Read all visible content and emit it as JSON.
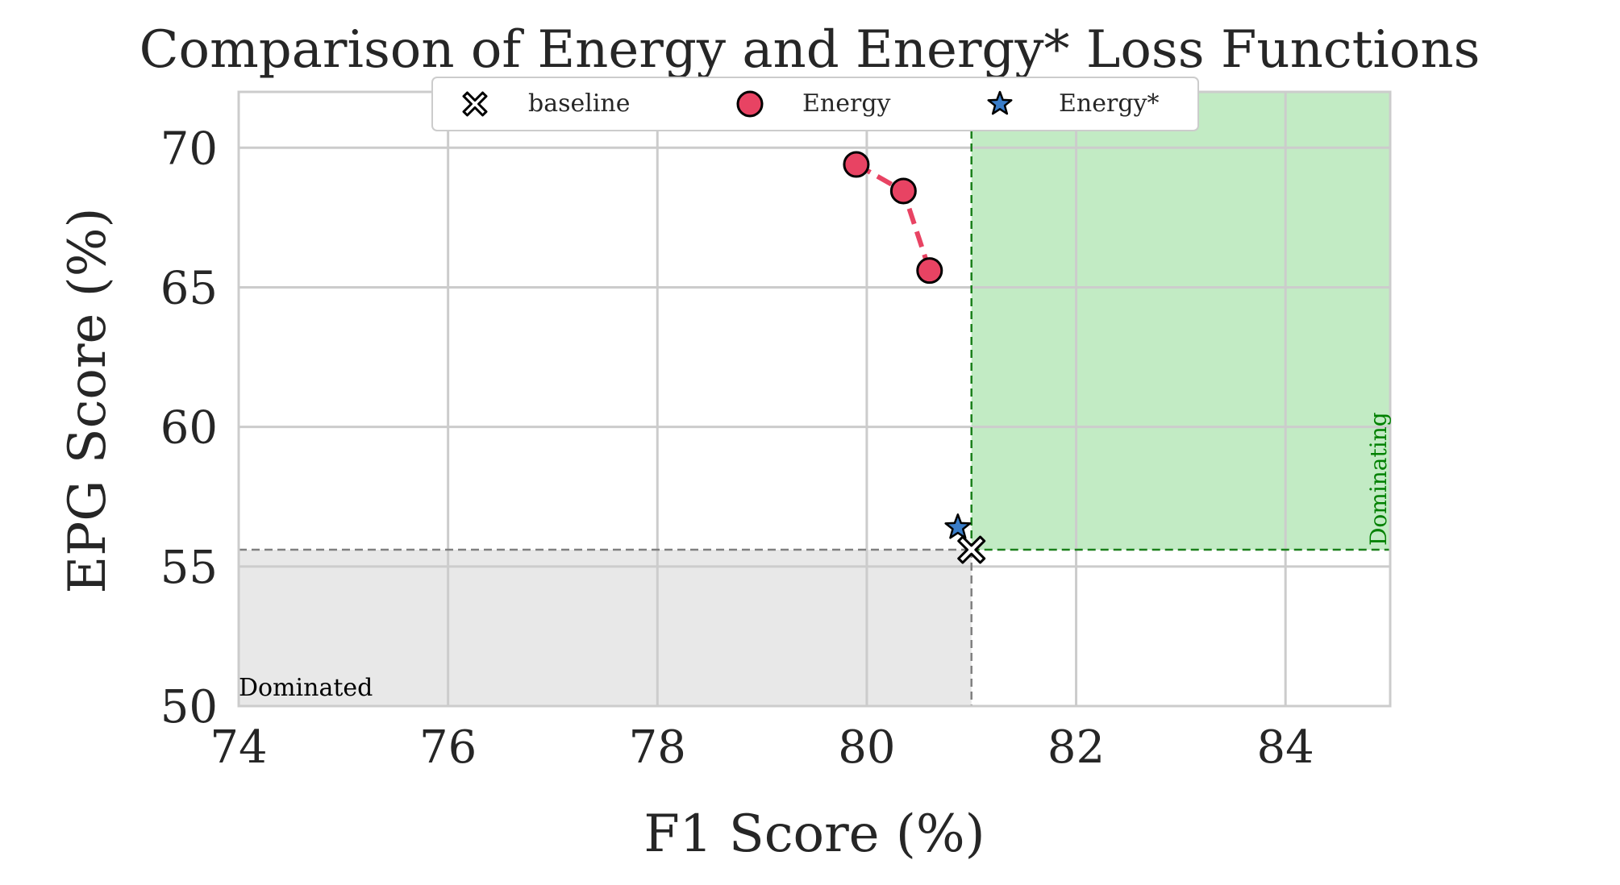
{
  "chart_data": {
    "type": "scatter",
    "title": "Comparison of Energy and Energy* Loss Functions",
    "xlabel": "F1 Score (%)",
    "ylabel": "EPG Score (%)",
    "xlim": [
      74,
      85
    ],
    "ylim": [
      50,
      72
    ],
    "xticks": [
      74,
      76,
      78,
      80,
      82,
      84
    ],
    "yticks": [
      50,
      55,
      60,
      65,
      70
    ],
    "grid": true,
    "legend": {
      "placement": "top-center",
      "columns": 3
    },
    "baseline": {
      "x": 81.0,
      "y": 55.6
    },
    "series": [
      {
        "name": "baseline",
        "marker": "x-cross",
        "color": "#ffffff",
        "connected": false,
        "points": [
          {
            "x": 81.0,
            "y": 55.6
          }
        ]
      },
      {
        "name": "Energy",
        "marker": "circle",
        "color": "#e84363",
        "connected": true,
        "points": [
          {
            "x": 79.9,
            "y": 69.4
          },
          {
            "x": 80.35,
            "y": 68.45
          },
          {
            "x": 80.6,
            "y": 65.6
          }
        ]
      },
      {
        "name": "Energy*",
        "marker": "star",
        "color": "#3a7dc9",
        "connected": false,
        "points": [
          {
            "x": 80.87,
            "y": 56.4
          }
        ]
      }
    ],
    "regions": [
      {
        "label": "Dominating",
        "color": "#c2ebc4",
        "text_color": "#008000"
      },
      {
        "label": "Dominated",
        "color": "#e8e8e8",
        "text_color": "#000000"
      }
    ]
  }
}
